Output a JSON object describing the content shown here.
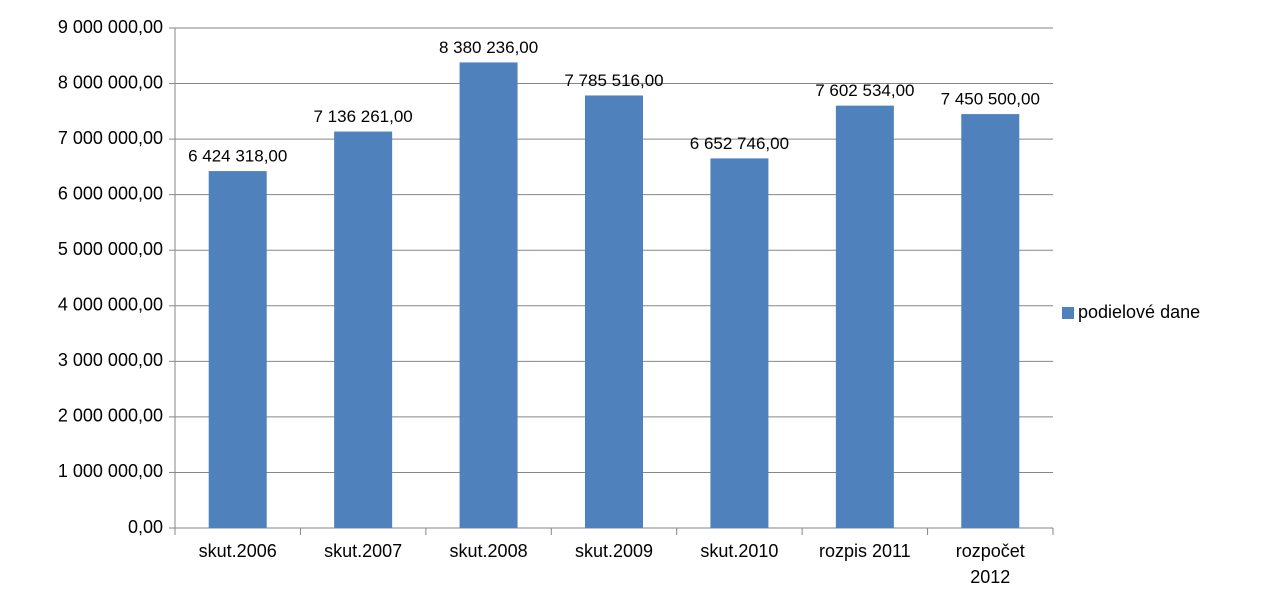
{
  "chart_data": {
    "type": "bar",
    "categories": [
      "skut.2006",
      "skut.2007",
      "skut.2008",
      "skut.2009",
      "skut.2010",
      "rozpis 2011",
      "rozpočet 2012"
    ],
    "series": [
      {
        "name": "podielové dane",
        "color": "#4f81bd",
        "values": [
          6424318,
          7136261,
          8380236,
          7785516,
          6652746,
          7602534,
          7450500
        ],
        "value_labels": [
          "6 424 318,00",
          "7 136 261,00",
          "8 380 236,00",
          "7 785 516,00",
          "6 652 746,00",
          "7 602 534,00",
          "7 450 500,00"
        ]
      }
    ],
    "ylim": [
      0,
      9000000
    ],
    "yticks": [
      {
        "value": 0,
        "label": "0,00"
      },
      {
        "value": 1000000,
        "label": "1 000 000,00"
      },
      {
        "value": 2000000,
        "label": "2 000 000,00"
      },
      {
        "value": 3000000,
        "label": "3 000 000,00"
      },
      {
        "value": 4000000,
        "label": "4 000 000,00"
      },
      {
        "value": 5000000,
        "label": "5 000 000,00"
      },
      {
        "value": 6000000,
        "label": "6 000 000,00"
      },
      {
        "value": 7000000,
        "label": "7 000 000,00"
      },
      {
        "value": 8000000,
        "label": "8 000 000,00"
      },
      {
        "value": 9000000,
        "label": "9 000 000,00"
      }
    ],
    "grid": true,
    "legend": "right"
  }
}
